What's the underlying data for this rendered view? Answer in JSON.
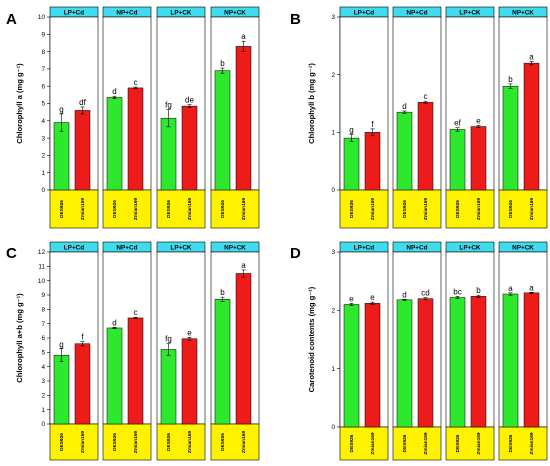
{
  "colors": {
    "DES926": "#2ee82e",
    "Zmian169": "#ee1b1b",
    "facet_header": "#40dcee",
    "label_box": "#fff200",
    "outline": "#000000"
  },
  "chart_data": [
    {
      "panel": "A",
      "type": "bar",
      "ylabel": "Chlorophyll a (mg g⁻¹)",
      "ylim": [
        0,
        10
      ],
      "yticks": [
        0,
        1,
        2,
        3,
        4,
        5,
        6,
        7,
        8,
        9,
        10
      ],
      "categories": [
        "DES926",
        "Zmian169"
      ],
      "facets": [
        {
          "name": "LP+Cd",
          "values": [
            3.9,
            4.6
          ],
          "errors": [
            0.5,
            0.2
          ],
          "letters": [
            "g",
            "df"
          ]
        },
        {
          "name": "NP+Cd",
          "values": [
            5.35,
            5.9
          ],
          "errors": [
            0.07,
            0.05
          ],
          "letters": [
            "d",
            "c"
          ]
        },
        {
          "name": "LP+CK",
          "values": [
            4.15,
            4.85
          ],
          "errors": [
            0.5,
            0.08
          ],
          "letters": [
            "fg",
            "de"
          ]
        },
        {
          "name": "NP+CK",
          "values": [
            6.9,
            8.3
          ],
          "errors": [
            0.15,
            0.3
          ],
          "letters": [
            "b",
            "a"
          ]
        }
      ]
    },
    {
      "panel": "B",
      "type": "bar",
      "ylabel": "Chlorophyll b (mg g⁻¹)",
      "ylim": [
        0,
        3
      ],
      "yticks": [
        0,
        1,
        2,
        3
      ],
      "categories": [
        "DES926",
        "Zmian169"
      ],
      "facets": [
        {
          "name": "LP+Cd",
          "values": [
            0.9,
            1.0
          ],
          "errors": [
            0.06,
            0.06
          ],
          "letters": [
            "g",
            "f"
          ]
        },
        {
          "name": "NP+Cd",
          "values": [
            1.35,
            1.52
          ],
          "errors": [
            0.02,
            0.02
          ],
          "letters": [
            "d",
            "c"
          ]
        },
        {
          "name": "LP+CK",
          "values": [
            1.05,
            1.1
          ],
          "errors": [
            0.03,
            0.02
          ],
          "letters": [
            "ef",
            "e"
          ]
        },
        {
          "name": "NP+CK",
          "values": [
            1.8,
            2.2
          ],
          "errors": [
            0.04,
            0.03
          ],
          "letters": [
            "b",
            "a"
          ]
        }
      ]
    },
    {
      "panel": "C",
      "type": "bar",
      "ylabel": "Chlorophyll a+b (mg g⁻¹)",
      "ylim": [
        0,
        12
      ],
      "yticks": [
        0,
        1,
        2,
        3,
        4,
        5,
        6,
        7,
        8,
        9,
        10,
        11,
        12
      ],
      "categories": [
        "DES926",
        "Zmian169"
      ],
      "facets": [
        {
          "name": "LP+Cd",
          "values": [
            4.8,
            5.6
          ],
          "errors": [
            0.45,
            0.15
          ],
          "letters": [
            "g",
            "f"
          ]
        },
        {
          "name": "NP+Cd",
          "values": [
            6.7,
            7.4
          ],
          "errors": [
            0.05,
            0.05
          ],
          "letters": [
            "d",
            "c"
          ]
        },
        {
          "name": "LP+CK",
          "values": [
            5.2,
            5.95
          ],
          "errors": [
            0.4,
            0.1
          ],
          "letters": [
            "fg",
            "e"
          ]
        },
        {
          "name": "NP+CK",
          "values": [
            8.7,
            10.5
          ],
          "errors": [
            0.15,
            0.25
          ],
          "letters": [
            "b",
            "a"
          ]
        }
      ]
    },
    {
      "panel": "D",
      "type": "bar",
      "ylabel": "Carotenoid contents (mg g⁻¹)",
      "ylim": [
        0,
        3
      ],
      "yticks": [
        0,
        1,
        2,
        3
      ],
      "categories": [
        "DES926",
        "Zmian169"
      ],
      "facets": [
        {
          "name": "LP+Cd",
          "values": [
            2.1,
            2.12
          ],
          "errors": [
            0.02,
            0.02
          ],
          "letters": [
            "e",
            "e"
          ]
        },
        {
          "name": "NP+Cd",
          "values": [
            2.18,
            2.2
          ],
          "errors": [
            0.01,
            0.02
          ],
          "letters": [
            "d",
            "cd"
          ]
        },
        {
          "name": "LP+CK",
          "values": [
            2.22,
            2.24
          ],
          "errors": [
            0.02,
            0.02
          ],
          "letters": [
            "bc",
            "b"
          ]
        },
        {
          "name": "NP+CK",
          "values": [
            2.28,
            2.3
          ],
          "errors": [
            0.02,
            0.01
          ],
          "letters": [
            "a",
            "a"
          ]
        }
      ]
    }
  ]
}
